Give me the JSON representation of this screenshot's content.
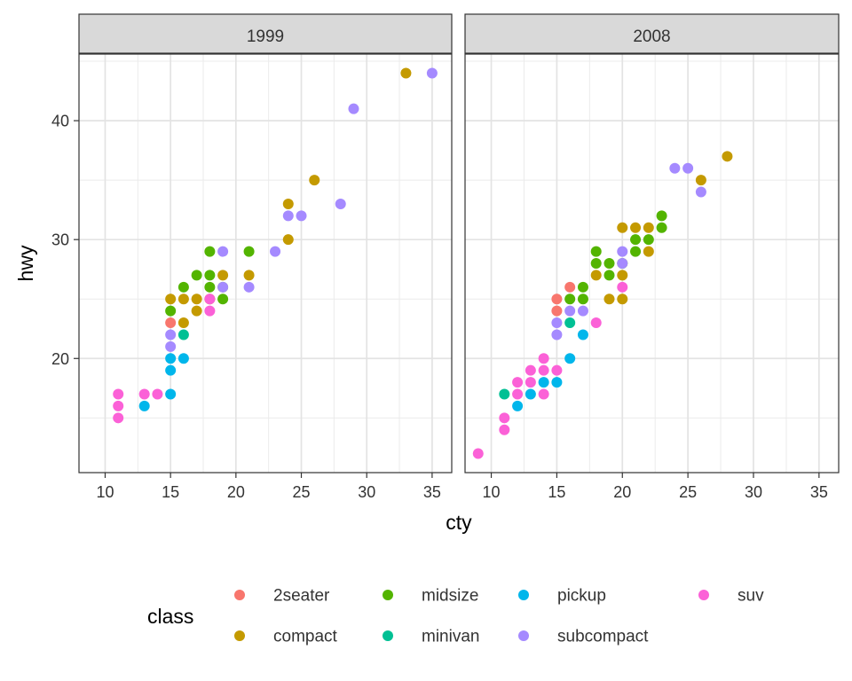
{
  "chart_data": {
    "type": "scatter",
    "xlabel": "cty",
    "ylabel": "hwy",
    "xlim": [
      8,
      36.5
    ],
    "ylim": [
      10.4,
      45.6
    ],
    "x_ticks": [
      10,
      15,
      20,
      25,
      30,
      35
    ],
    "y_ticks": [
      20,
      30,
      40
    ],
    "grid": true,
    "facets": [
      "1999",
      "2008"
    ],
    "legend": {
      "title": "class",
      "position": "bottom",
      "items": [
        {
          "key": "2seater",
          "label": "2seater",
          "color": "#F8766D"
        },
        {
          "key": "compact",
          "label": "compact",
          "color": "#C49A00"
        },
        {
          "key": "midsize",
          "label": "midsize",
          "color": "#53B400"
        },
        {
          "key": "minivan",
          "label": "minivan",
          "color": "#00C094"
        },
        {
          "key": "pickup",
          "label": "pickup",
          "color": "#00B6EB"
        },
        {
          "key": "subcompact",
          "label": "subcompact",
          "color": "#A58AFF"
        },
        {
          "key": "suv",
          "label": "suv",
          "color": "#FB61D7"
        }
      ]
    },
    "series": [
      {
        "facet": "1999",
        "name": "2seater",
        "points": [
          [
            15,
            23
          ]
        ]
      },
      {
        "facet": "1999",
        "name": "compact",
        "points": [
          [
            15,
            25
          ],
          [
            16,
            25
          ],
          [
            16,
            23
          ],
          [
            17,
            25
          ],
          [
            17,
            24
          ],
          [
            18,
            25
          ],
          [
            19,
            27
          ],
          [
            21,
            27
          ],
          [
            24,
            33
          ],
          [
            24,
            30
          ],
          [
            26,
            35
          ],
          [
            33,
            44
          ]
        ]
      },
      {
        "facet": "1999",
        "name": "midsize",
        "points": [
          [
            15,
            24
          ],
          [
            16,
            26
          ],
          [
            17,
            27
          ],
          [
            18,
            29
          ],
          [
            18,
            27
          ],
          [
            18,
            26
          ],
          [
            19,
            26
          ],
          [
            19,
            25
          ],
          [
            21,
            29
          ]
        ]
      },
      {
        "facet": "1999",
        "name": "minivan",
        "points": [
          [
            16,
            22
          ]
        ]
      },
      {
        "facet": "1999",
        "name": "pickup",
        "points": [
          [
            13,
            16
          ],
          [
            15,
            17
          ],
          [
            15,
            19
          ],
          [
            15,
            20
          ],
          [
            16,
            20
          ]
        ]
      },
      {
        "facet": "1999",
        "name": "subcompact",
        "points": [
          [
            15,
            21
          ],
          [
            15,
            22
          ],
          [
            19,
            29
          ],
          [
            19,
            26
          ],
          [
            21,
            26
          ],
          [
            23,
            29
          ],
          [
            24,
            32
          ],
          [
            25,
            32
          ],
          [
            28,
            33
          ],
          [
            29,
            41
          ],
          [
            35,
            44
          ]
        ]
      },
      {
        "facet": "1999",
        "name": "suv",
        "points": [
          [
            11,
            15
          ],
          [
            11,
            16
          ],
          [
            11,
            17
          ],
          [
            13,
            17
          ],
          [
            14,
            17
          ],
          [
            18,
            24
          ],
          [
            18,
            25
          ]
        ]
      },
      {
        "facet": "2008",
        "name": "2seater",
        "points": [
          [
            15,
            25
          ],
          [
            15,
            24
          ],
          [
            16,
            26
          ]
        ]
      },
      {
        "facet": "2008",
        "name": "compact",
        "points": [
          [
            18,
            27
          ],
          [
            19,
            25
          ],
          [
            20,
            25
          ],
          [
            20,
            27
          ],
          [
            20,
            31
          ],
          [
            21,
            31
          ],
          [
            22,
            31
          ],
          [
            22,
            29
          ],
          [
            26,
            35
          ],
          [
            28,
            37
          ]
        ]
      },
      {
        "facet": "2008",
        "name": "midsize",
        "points": [
          [
            16,
            25
          ],
          [
            17,
            26
          ],
          [
            17,
            25
          ],
          [
            18,
            29
          ],
          [
            18,
            28
          ],
          [
            19,
            28
          ],
          [
            19,
            27
          ],
          [
            20,
            28
          ],
          [
            21,
            30
          ],
          [
            21,
            29
          ],
          [
            22,
            30
          ],
          [
            23,
            32
          ],
          [
            23,
            31
          ]
        ]
      },
      {
        "facet": "2008",
        "name": "minivan",
        "points": [
          [
            11,
            17
          ],
          [
            16,
            23
          ]
        ]
      },
      {
        "facet": "2008",
        "name": "pickup",
        "points": [
          [
            12,
            16
          ],
          [
            13,
            17
          ],
          [
            14,
            18
          ],
          [
            15,
            18
          ],
          [
            16,
            20
          ],
          [
            17,
            22
          ]
        ]
      },
      {
        "facet": "2008",
        "name": "subcompact",
        "points": [
          [
            15,
            23
          ],
          [
            15,
            22
          ],
          [
            16,
            24
          ],
          [
            17,
            24
          ],
          [
            20,
            29
          ],
          [
            20,
            28
          ],
          [
            24,
            36
          ],
          [
            25,
            36
          ],
          [
            26,
            34
          ]
        ]
      },
      {
        "facet": "2008",
        "name": "suv",
        "points": [
          [
            9,
            12
          ],
          [
            11,
            15
          ],
          [
            11,
            14
          ],
          [
            12,
            18
          ],
          [
            12,
            17
          ],
          [
            13,
            19
          ],
          [
            13,
            18
          ],
          [
            14,
            20
          ],
          [
            14,
            19
          ],
          [
            14,
            17
          ],
          [
            15,
            19
          ],
          [
            18,
            23
          ],
          [
            20,
            26
          ]
        ]
      }
    ]
  }
}
